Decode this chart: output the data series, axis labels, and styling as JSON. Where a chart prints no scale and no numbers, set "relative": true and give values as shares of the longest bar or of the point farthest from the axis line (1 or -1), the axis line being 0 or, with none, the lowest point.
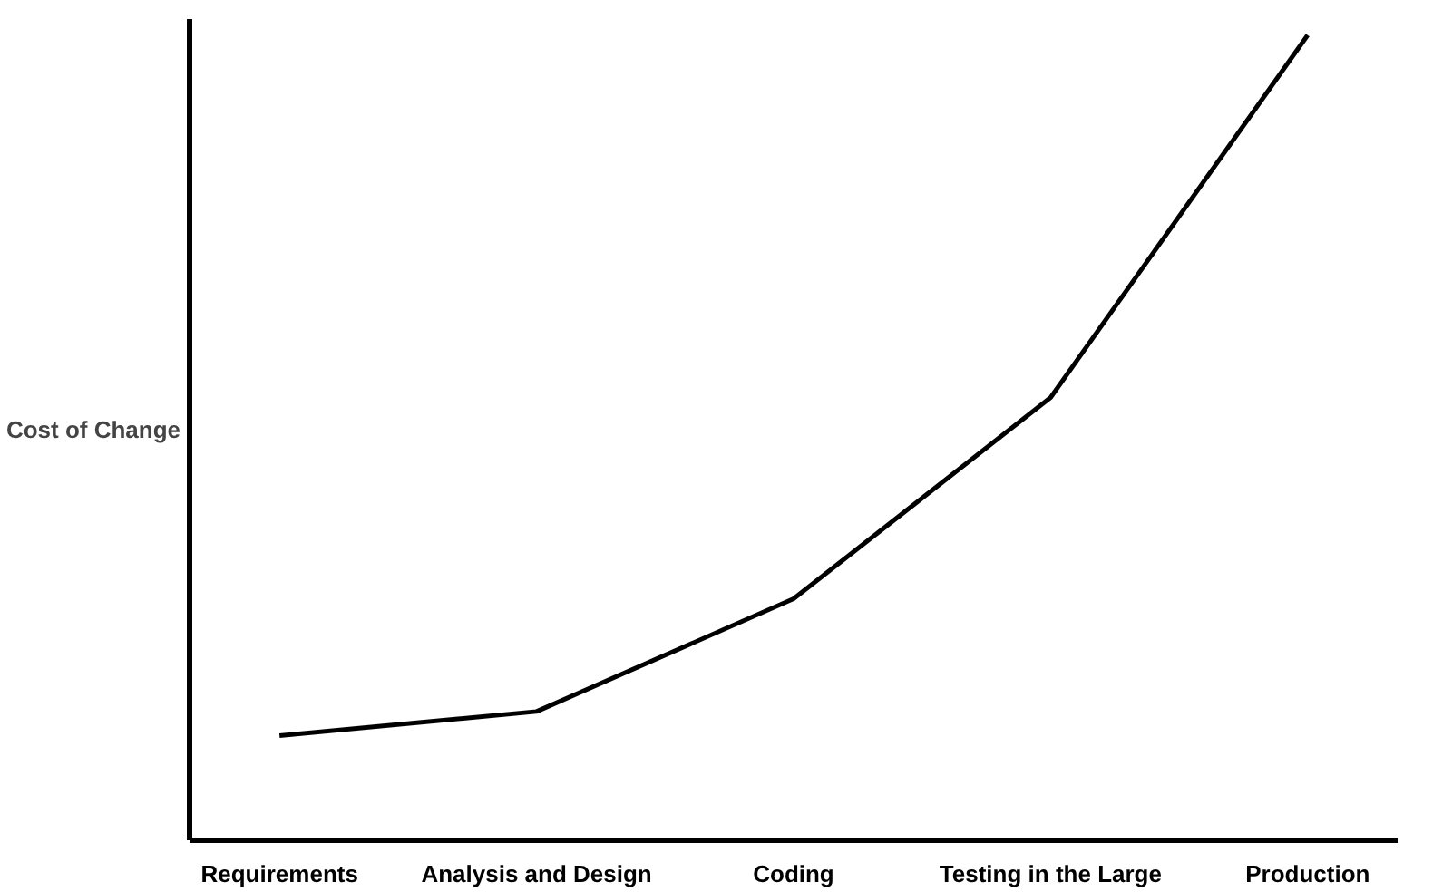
{
  "chart_data": {
    "type": "line",
    "relative": true,
    "ylabel": "Cost of Change",
    "categories": [
      "Requirements",
      "Analysis and Design",
      "Coding",
      "Testing in the Large",
      "Production"
    ],
    "series": [
      {
        "color": "#000000",
        "values": [
          0.13,
          0.16,
          0.3,
          0.55,
          1
        ]
      }
    ],
    "grid": false
  }
}
